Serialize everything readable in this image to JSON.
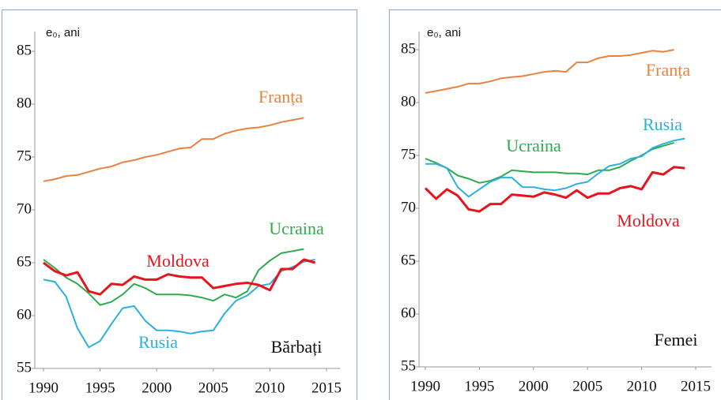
{
  "chart_data": [
    {
      "type": "line",
      "y_label": "e₀, ani",
      "annotation": "Bărbați",
      "x": [
        1990,
        1991,
        1992,
        1993,
        1994,
        1995,
        1996,
        1997,
        1998,
        1999,
        2000,
        2001,
        2002,
        2003,
        2004,
        2005,
        2006,
        2007,
        2008,
        2009,
        2010,
        2011,
        2012,
        2013,
        2014
      ],
      "xlim": [
        1990,
        2015
      ],
      "xticks": [
        1990,
        1995,
        2000,
        2005,
        2010,
        2015
      ],
      "ylim": [
        55,
        85
      ],
      "yticks": [
        55,
        60,
        65,
        70,
        75,
        80,
        85
      ],
      "series": [
        {
          "name": "Franța",
          "color": "#e8823f",
          "values": [
            72.7,
            72.9,
            73.2,
            73.3,
            73.6,
            73.9,
            74.1,
            74.5,
            74.7,
            75.0,
            75.2,
            75.5,
            75.8,
            75.9,
            76.7,
            76.7,
            77.2,
            77.5,
            77.7,
            77.8,
            78.0,
            78.3,
            78.5,
            78.7,
            null
          ]
        },
        {
          "name": "Ucraina",
          "color": "#2eaa4e",
          "values": [
            65.3,
            64.5,
            63.6,
            63.0,
            62.1,
            61.0,
            61.3,
            62.0,
            63.0,
            62.6,
            62.0,
            62.0,
            62.0,
            61.9,
            61.7,
            61.4,
            62.0,
            61.7,
            62.3,
            64.3,
            65.2,
            65.9,
            66.1,
            66.3,
            null
          ]
        },
        {
          "name": "Rusia",
          "color": "#2bb0e0",
          "values": [
            63.4,
            63.2,
            61.8,
            58.8,
            57.0,
            57.6,
            59.2,
            60.7,
            60.9,
            59.5,
            58.6,
            58.6,
            58.5,
            58.3,
            58.5,
            58.6,
            60.2,
            61.4,
            61.9,
            62.8,
            63.0,
            64.2,
            64.6,
            65.1,
            65.3
          ]
        },
        {
          "name": "Moldova",
          "color": "#e8141c",
          "values": [
            65.0,
            64.2,
            63.8,
            64.1,
            62.3,
            62.0,
            63.0,
            62.9,
            63.7,
            63.4,
            63.4,
            63.9,
            63.7,
            63.6,
            63.6,
            62.6,
            62.8,
            63.0,
            63.1,
            62.9,
            62.4,
            64.4,
            64.4,
            65.3,
            65.0
          ]
        }
      ]
    },
    {
      "type": "line",
      "y_label": "e₀, ani",
      "annotation": "Femei",
      "x": [
        1990,
        1991,
        1992,
        1993,
        1994,
        1995,
        1996,
        1997,
        1998,
        1999,
        2000,
        2001,
        2002,
        2003,
        2004,
        2005,
        2006,
        2007,
        2008,
        2009,
        2010,
        2011,
        2012,
        2013,
        2014
      ],
      "xlim": [
        1990,
        2015
      ],
      "xticks": [
        1990,
        1995,
        2000,
        2005,
        2010,
        2015
      ],
      "ylim": [
        55,
        85
      ],
      "yticks": [
        55,
        60,
        65,
        70,
        75,
        80,
        85
      ],
      "series": [
        {
          "name": "Franța",
          "color": "#e8823f",
          "values": [
            80.9,
            81.1,
            81.3,
            81.5,
            81.8,
            81.8,
            82.0,
            82.3,
            82.4,
            82.5,
            82.7,
            82.9,
            83.0,
            82.9,
            83.8,
            83.8,
            84.2,
            84.4,
            84.4,
            84.5,
            84.7,
            84.9,
            84.8,
            85.0,
            null
          ]
        },
        {
          "name": "Ucraina",
          "color": "#2eaa4e",
          "values": [
            74.7,
            74.3,
            73.8,
            73.1,
            72.8,
            72.4,
            72.6,
            73.0,
            73.6,
            73.5,
            73.4,
            73.4,
            73.4,
            73.3,
            73.3,
            73.2,
            73.6,
            73.6,
            73.9,
            74.5,
            75.0,
            75.6,
            75.9,
            76.2,
            null
          ]
        },
        {
          "name": "Rusia",
          "color": "#2bb0e0",
          "values": [
            74.2,
            74.2,
            73.8,
            72.0,
            71.1,
            71.8,
            72.5,
            72.9,
            72.9,
            72.0,
            72.0,
            71.8,
            71.7,
            71.9,
            72.3,
            72.5,
            73.3,
            74.0,
            74.2,
            74.7,
            74.9,
            75.7,
            76.1,
            76.4,
            76.6
          ]
        },
        {
          "name": "Moldova",
          "color": "#e8141c",
          "values": [
            71.9,
            70.9,
            71.8,
            71.2,
            69.9,
            69.7,
            70.4,
            70.4,
            71.3,
            71.2,
            71.1,
            71.5,
            71.3,
            71.0,
            71.7,
            71.0,
            71.4,
            71.4,
            71.9,
            72.1,
            71.8,
            73.4,
            73.2,
            73.9,
            73.8
          ]
        }
      ]
    }
  ]
}
